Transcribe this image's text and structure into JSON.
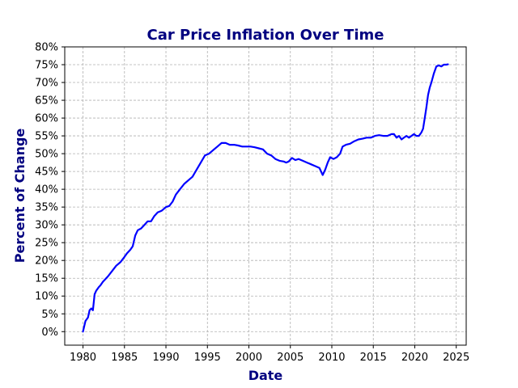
{
  "chart_data": {
    "type": "line",
    "title": "Car Price Inflation Over Time",
    "xlabel": "Date",
    "ylabel": "Percent of Change",
    "xlim": [
      1977.8,
      2026.2
    ],
    "ylim": [
      -3.8,
      80
    ],
    "grid": true,
    "x_ticks": [
      1980,
      1985,
      1990,
      1995,
      2000,
      2005,
      2010,
      2015,
      2020,
      2025
    ],
    "y_ticks": [
      0,
      5,
      10,
      15,
      20,
      25,
      30,
      35,
      40,
      45,
      50,
      55,
      60,
      65,
      70,
      75,
      80
    ],
    "y_tick_suffix": "%",
    "line_color": "#0000ff",
    "grid_color": "#b0b0b0",
    "series": [
      {
        "x": [
          1980.0,
          1980.3,
          1980.6,
          1980.8,
          1981.0,
          1981.2,
          1981.4,
          1981.6,
          1981.9,
          1982.1,
          1982.4,
          1982.6,
          1983.0,
          1983.5,
          1984.0,
          1984.5,
          1985.0,
          1985.3,
          1985.7,
          1986.0,
          1986.3,
          1986.6,
          1987.0,
          1987.4,
          1987.8,
          1988.2,
          1988.6,
          1989.0,
          1989.5,
          1990.0,
          1990.4,
          1990.8,
          1991.2,
          1991.7,
          1992.2,
          1992.7,
          1993.2,
          1993.7,
          1994.2,
          1994.7,
          1995.2,
          1995.7,
          1996.2,
          1996.7,
          1997.2,
          1997.7,
          1998.2,
          1998.7,
          1999.2,
          1999.7,
          2000.2,
          2000.7,
          2001.2,
          2001.7,
          2002.2,
          2002.7,
          2003.2,
          2003.7,
          2004.2,
          2004.5,
          2004.8,
          2005.2,
          2005.6,
          2006.0,
          2006.5,
          2007.0,
          2007.5,
          2008.0,
          2008.5,
          2008.9,
          2009.2,
          2009.5,
          2009.8,
          2010.2,
          2010.6,
          2011.0,
          2011.3,
          2011.7,
          2012.2,
          2012.7,
          2013.2,
          2013.7,
          2014.2,
          2014.7,
          2015.2,
          2015.7,
          2016.2,
          2016.7,
          2017.2,
          2017.5,
          2017.8,
          2018.1,
          2018.4,
          2018.7,
          2019.0,
          2019.3,
          2019.6,
          2019.9,
          2020.2,
          2020.5,
          2020.8,
          2021.0,
          2021.2,
          2021.4,
          2021.6,
          2021.8,
          2022.0,
          2022.3,
          2022.6,
          2022.9,
          2023.2,
          2023.5,
          2023.8,
          2024.0
        ],
        "y": [
          0.0,
          3.0,
          4.0,
          6.0,
          6.5,
          6.0,
          10.5,
          11.5,
          12.5,
          13.0,
          14.0,
          14.5,
          15.5,
          17.0,
          18.5,
          19.5,
          21.0,
          22.0,
          23.0,
          24.0,
          27.0,
          28.5,
          29.0,
          30.0,
          31.0,
          31.0,
          32.5,
          33.5,
          34.0,
          35.0,
          35.3,
          36.5,
          38.5,
          40.0,
          41.5,
          42.5,
          43.5,
          45.5,
          47.5,
          49.5,
          50.0,
          51.0,
          52.0,
          53.0,
          53.0,
          52.5,
          52.5,
          52.3,
          52.0,
          52.0,
          52.0,
          51.8,
          51.5,
          51.2,
          50.0,
          49.5,
          48.5,
          48.0,
          47.8,
          47.5,
          47.8,
          48.8,
          48.2,
          48.5,
          48.0,
          47.5,
          47.0,
          46.5,
          46.0,
          44.0,
          45.5,
          47.5,
          49.0,
          48.5,
          49.0,
          50.0,
          52.0,
          52.5,
          52.8,
          53.5,
          54.0,
          54.2,
          54.5,
          54.5,
          55.0,
          55.2,
          55.0,
          55.0,
          55.5,
          55.5,
          54.5,
          55.0,
          54.0,
          54.5,
          55.0,
          54.5,
          55.0,
          55.5,
          55.0,
          55.0,
          56.0,
          57.0,
          60.0,
          63.0,
          66.5,
          68.5,
          70.0,
          72.5,
          74.5,
          74.8,
          74.5,
          75.0,
          75.0,
          75.1
        ]
      }
    ]
  }
}
